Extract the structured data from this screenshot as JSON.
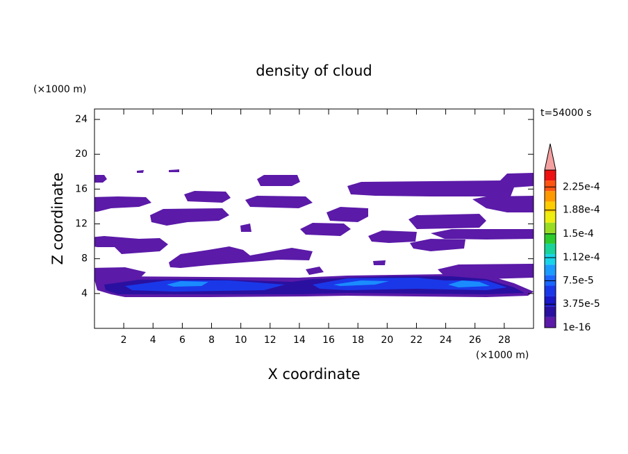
{
  "chart_data": {
    "type": "contour",
    "title": "density of cloud",
    "annotation": "t=54000 s",
    "x_label": "X coordinate",
    "y_label": "Z coordinate",
    "x_unit": "(×1000 m)",
    "y_unit": "(×1000 m)",
    "xlim": [
      0,
      30
    ],
    "xticks": [
      2,
      4,
      6,
      8,
      10,
      12,
      14,
      16,
      18,
      20,
      22,
      24,
      26,
      28
    ],
    "ylim": [
      0,
      25.2
    ],
    "yticks": [
      4,
      8,
      12,
      16,
      20,
      24
    ],
    "colorbar": {
      "lim": [
        1e-16,
        0.000252
      ],
      "ticks": [
        {
          "value": 1e-16,
          "label": "1e-16"
        },
        {
          "value": 3.75e-05,
          "label": "3.75e-5"
        },
        {
          "value": 7.5e-05,
          "label": "7.5e-5"
        },
        {
          "value": 0.000112,
          "label": "1.12e-4"
        },
        {
          "value": 0.00015,
          "label": "1.5e-4"
        },
        {
          "value": 0.000188,
          "label": "1.88e-4"
        },
        {
          "value": 0.000225,
          "label": "2.25e-4"
        }
      ],
      "colors": [
        "#5b1aa8",
        "#2a10a0",
        "#1a18c8",
        "#1a38e8",
        "#1a66ff",
        "#1a9cff",
        "#18d4e8",
        "#18d49a",
        "#2ccc2c",
        "#99dd22",
        "#eeee11",
        "#ffcc00",
        "#ff9900",
        "#ff5511",
        "#ee1111"
      ],
      "extend_color": "#f4a0a0"
    }
  }
}
